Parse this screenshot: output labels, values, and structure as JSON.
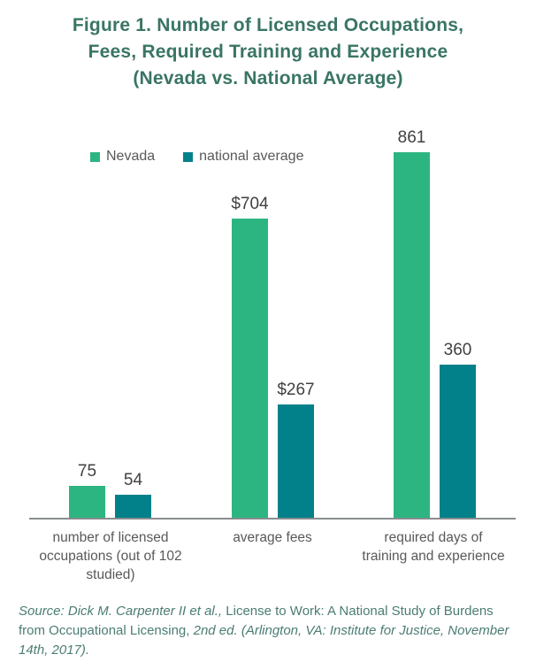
{
  "title": {
    "line1": "Figure 1. Number of Licensed Occupations,",
    "line2": "Fees, Required Training and Experience",
    "line3": "(Nevada vs. National Average)"
  },
  "chart_data": {
    "type": "bar",
    "title": "Figure 1. Number of Licensed Occupations, Fees, Required Training and Experience (Nevada vs. National Average)",
    "categories": [
      "number of licensed occupations (out of 102 studied)",
      "average fees",
      "required days of training and experience"
    ],
    "categories_display": [
      "number of licensed\noccupations (out of 102\nstudied)",
      "average fees",
      "required days of\ntraining and experience"
    ],
    "series": [
      {
        "name": "Nevada",
        "color": "#2db581",
        "values": [
          75,
          704,
          861
        ],
        "value_labels": [
          "75",
          "$704",
          "861"
        ]
      },
      {
        "name": "national average",
        "color": "#03818a",
        "values": [
          54,
          267,
          360
        ],
        "value_labels": [
          "54",
          "$267",
          "360"
        ]
      }
    ],
    "ylim": [
      0,
      900
    ],
    "grid": false,
    "legend_position": "top-left",
    "value_labels_shown": true,
    "axis_line_color": "#8a8c8e"
  },
  "source": {
    "seg1_italic": "Source: Dick M. Carpenter II et al., ",
    "seg2_regular": "License to Work: A National Study of Burdens from Occupational Licensing, ",
    "seg3_italic": "2nd ed. (Arlington, VA: Institute for Justice, November 14th, 2017)."
  },
  "colors": {
    "title": "#3a7565",
    "source_text": "#4b7d73",
    "category_labels": "#58595b",
    "value_labels": "#414042"
  }
}
